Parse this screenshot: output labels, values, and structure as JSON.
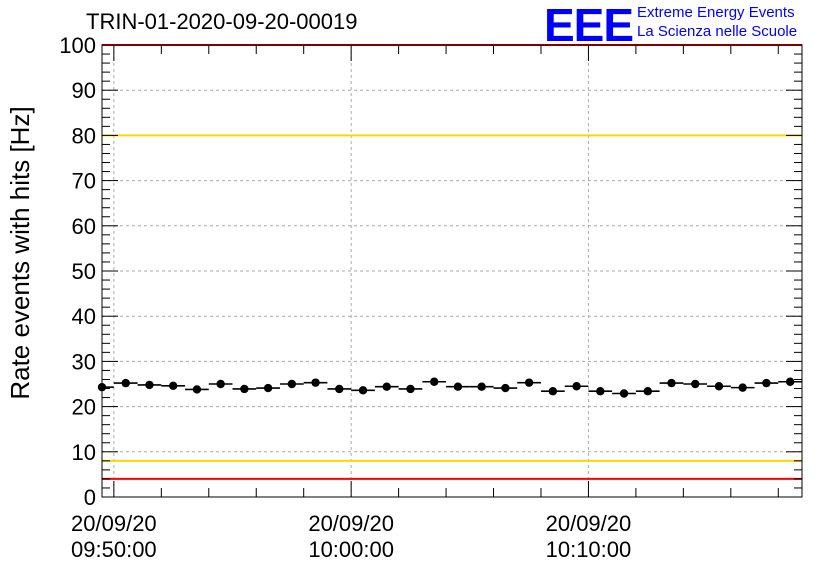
{
  "colors": {
    "brand": "#0000ff",
    "threshold_high": "#ff0000",
    "threshold_warn": "#ffd700",
    "marker": "#000000"
  },
  "logo": {
    "mark": "EEE",
    "line1": "Extreme Energy Events",
    "line2": "La Scienza nelle Scuole"
  },
  "chart_data": {
    "type": "scatter",
    "title": "TRIN-01-2020-09-20-00019",
    "ylabel": "Rate events with hits [Hz]",
    "xlabel": "",
    "ylim": [
      0,
      100
    ],
    "xlim": [
      "09:49:30",
      "10:19:00"
    ],
    "grid": true,
    "yticks": [
      0,
      10,
      20,
      30,
      40,
      50,
      60,
      70,
      80,
      90,
      100
    ],
    "xticks": [
      {
        "time": "09:50:00",
        "date": "20/09/20",
        "clock": "09:50:00"
      },
      {
        "time": "10:00:00",
        "date": "20/09/20",
        "clock": "10:00:00"
      },
      {
        "time": "10:10:00",
        "date": "20/09/20",
        "clock": "10:10:00"
      }
    ],
    "reference_lines": [
      {
        "y": 100,
        "color": "#ff0000"
      },
      {
        "y": 80,
        "color": "#ffd700"
      },
      {
        "y": 8,
        "color": "#ffd700"
      },
      {
        "y": 4,
        "color": "#ff0000"
      }
    ],
    "bin_width_minutes": 1,
    "series": [
      {
        "x": [
          "09:49:30",
          "09:50:30",
          "09:51:30",
          "09:52:30",
          "09:53:30",
          "09:54:30",
          "09:55:30",
          "09:56:30",
          "09:57:30",
          "09:58:30",
          "09:59:30",
          "10:00:30",
          "10:01:30",
          "10:02:30",
          "10:03:30",
          "10:04:30",
          "10:05:30",
          "10:06:30",
          "10:07:30",
          "10:08:30",
          "10:09:30",
          "10:10:30",
          "10:11:30",
          "10:12:30",
          "10:13:30",
          "10:14:30",
          "10:15:30",
          "10:16:30",
          "10:17:30",
          "10:18:30"
        ],
        "values": [
          24.3,
          25.2,
          24.8,
          24.6,
          23.8,
          25.0,
          23.9,
          24.1,
          25.0,
          25.3,
          23.9,
          23.6,
          24.4,
          23.9,
          25.5,
          24.4,
          24.4,
          24.1,
          25.3,
          23.4,
          24.5,
          23.4,
          22.9,
          23.4,
          25.2,
          25.0,
          24.5,
          24.2,
          25.2,
          25.5
        ]
      }
    ]
  }
}
